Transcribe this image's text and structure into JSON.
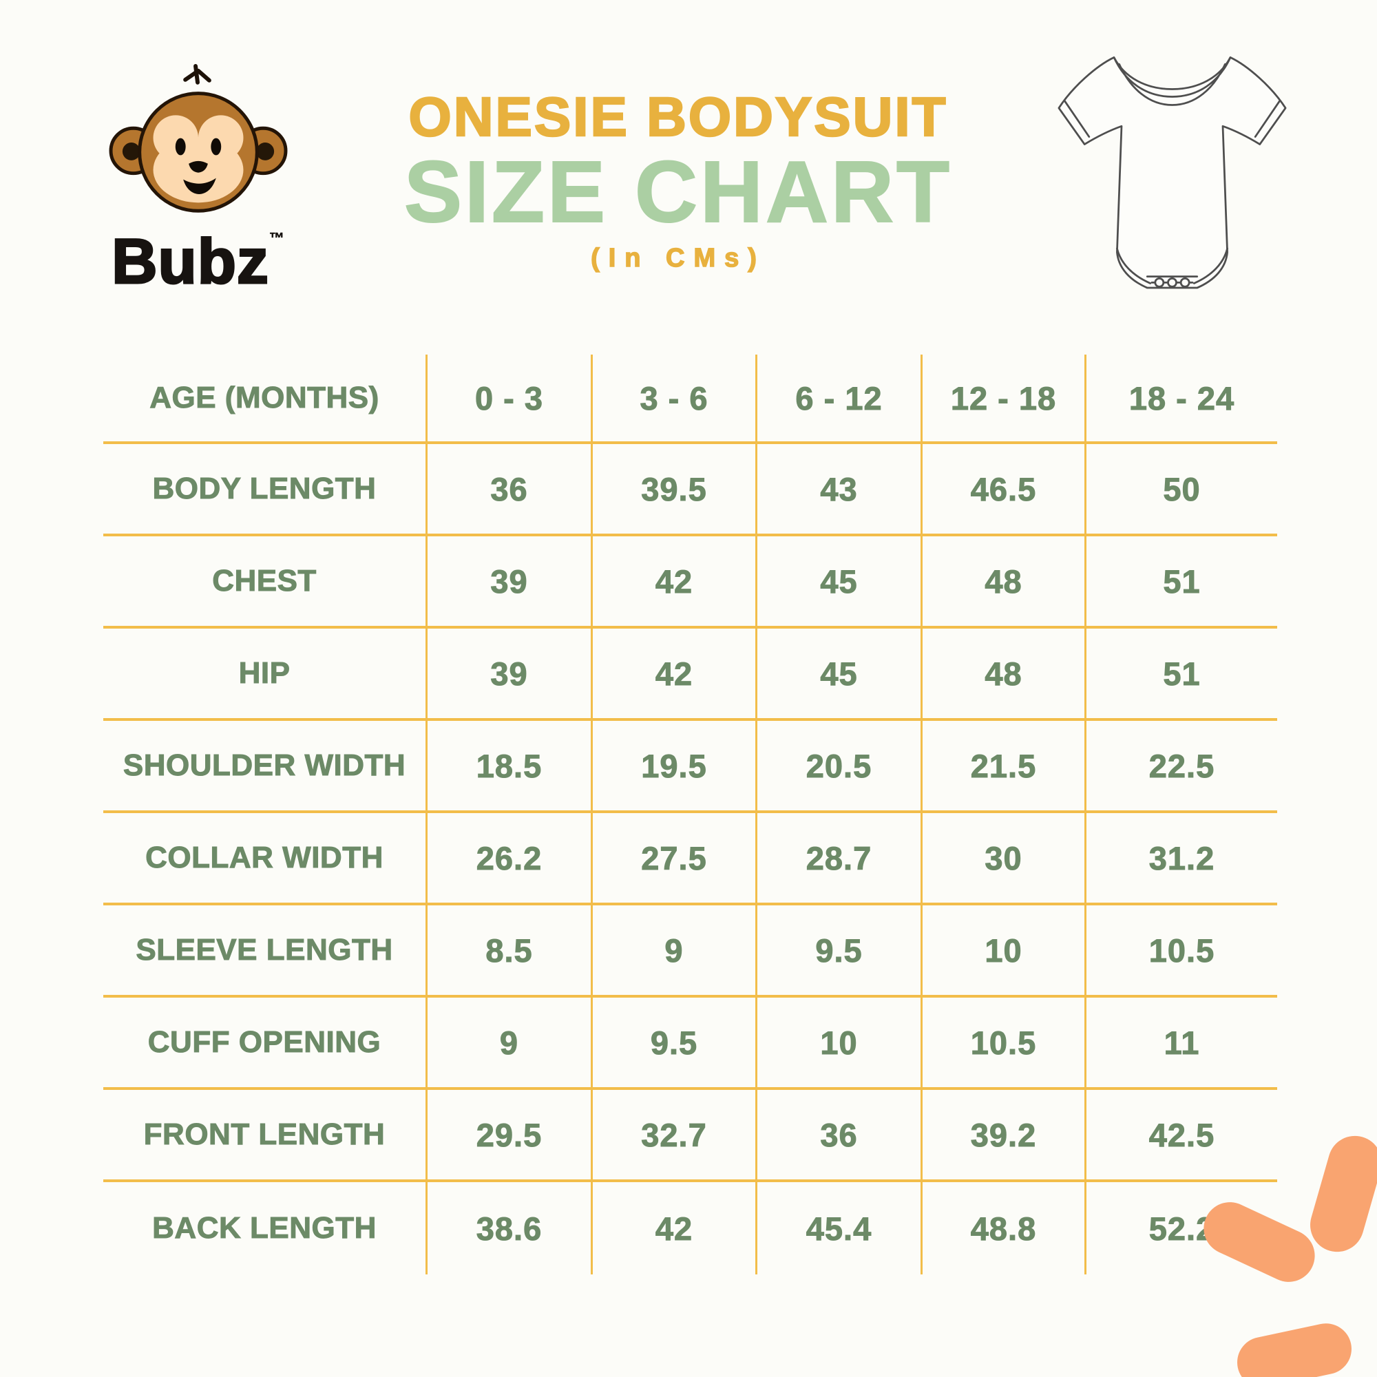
{
  "brand": {
    "name": "Bubz",
    "trademark": "™"
  },
  "header": {
    "title": "ONESIE BODYSUIT",
    "subtitle": "SIZE CHART",
    "unit_note": "(In CMs)"
  },
  "icons": {
    "logo": "monkey-icon",
    "product": "onesie-bodysuit-illustration",
    "decoration": "orange-brush-strokes"
  },
  "colors": {
    "background": "#fcfcf8",
    "title_yellow": "#e8b13e",
    "title_green": "#abcfa3",
    "table_text_green": "#6c8a67",
    "grid_line_yellow": "#f2bd4a",
    "decoration_orange": "#f9a470",
    "monkey_brown": "#b5762e",
    "monkey_face_peach": "#fcd9af",
    "brand_text_black": "#171310"
  },
  "chart_data": {
    "type": "table",
    "title": "ONESIE BODYSUIT SIZE CHART",
    "unit": "CMs",
    "columns": [
      "AGE (MONTHS)",
      "0 - 3",
      "3 - 6",
      "6 - 12",
      "12 - 18",
      "18 - 24"
    ],
    "rows": [
      {
        "label": "BODY LENGTH",
        "values": [
          "36",
          "39.5",
          "43",
          "46.5",
          "50"
        ]
      },
      {
        "label": "CHEST",
        "values": [
          "39",
          "42",
          "45",
          "48",
          "51"
        ]
      },
      {
        "label": "HIP",
        "values": [
          "39",
          "42",
          "45",
          "48",
          "51"
        ]
      },
      {
        "label": "SHOULDER WIDTH",
        "values": [
          "18.5",
          "19.5",
          "20.5",
          "21.5",
          "22.5"
        ]
      },
      {
        "label": "COLLAR WIDTH",
        "values": [
          "26.2",
          "27.5",
          "28.7",
          "30",
          "31.2"
        ]
      },
      {
        "label": "SLEEVE LENGTH",
        "values": [
          "8.5",
          "9",
          "9.5",
          "10",
          "10.5"
        ]
      },
      {
        "label": "CUFF OPENING",
        "values": [
          "9",
          "9.5",
          "10",
          "10.5",
          "11"
        ]
      },
      {
        "label": "FRONT LENGTH",
        "values": [
          "29.5",
          "32.7",
          "36",
          "39.2",
          "42.5"
        ]
      },
      {
        "label": "BACK LENGTH",
        "values": [
          "38.6",
          "42",
          "45.4",
          "48.8",
          "52.2"
        ]
      }
    ]
  }
}
